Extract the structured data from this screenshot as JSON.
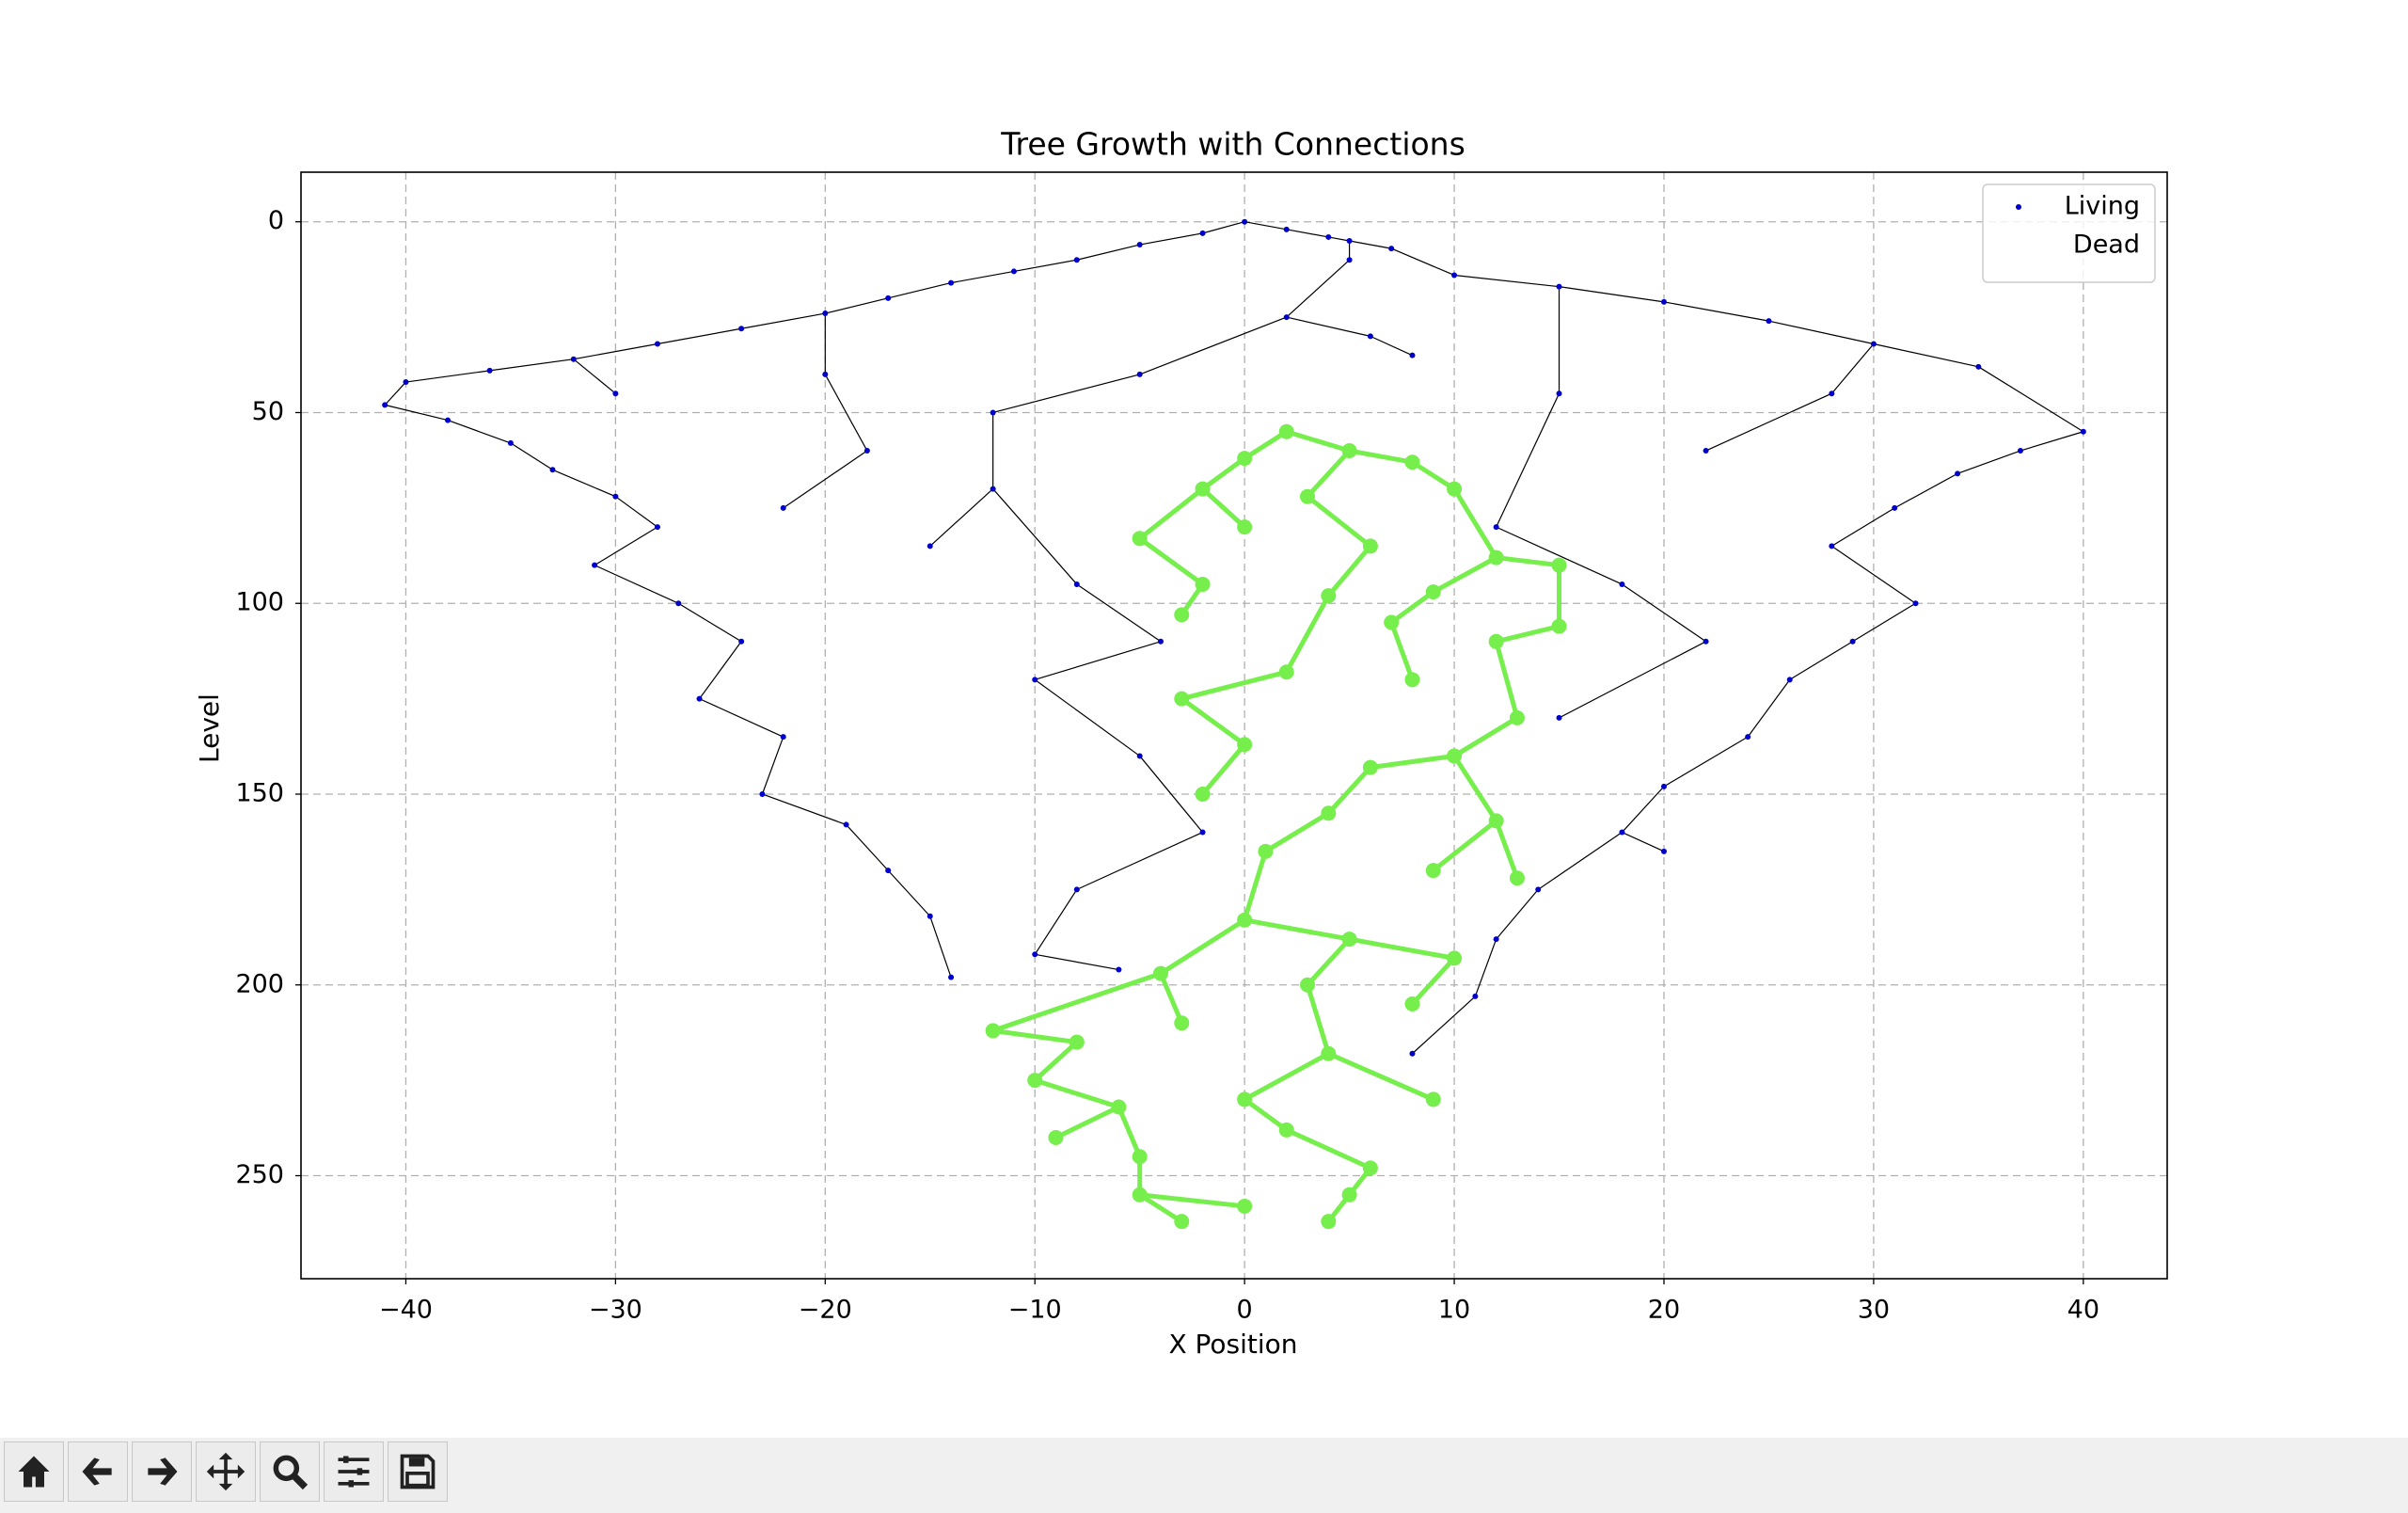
{
  "chart_data": {
    "type": "scatter",
    "title": "Tree Growth with Connections",
    "xlabel": "X Position",
    "ylabel": "Level",
    "xlim": [
      -45,
      44
    ],
    "ylim": [
      -13,
      277
    ],
    "invert_y": true,
    "grid": true,
    "legend": "upper right",
    "xticks": [
      {
        "value": -40,
        "label": "−40"
      },
      {
        "value": -30,
        "label": "−30"
      },
      {
        "value": -20,
        "label": "−20"
      },
      {
        "value": -10,
        "label": "−10"
      },
      0,
      10,
      20,
      30,
      40
    ],
    "yticks": [
      0,
      50,
      100,
      150,
      200,
      250
    ],
    "series": [
      {
        "name": "Living",
        "color": "#0000cc",
        "x": [
          0,
          2,
          4,
          5,
          7,
          -2,
          -5,
          -8,
          -11,
          -14,
          -17,
          -20,
          -24,
          -28,
          -32,
          -36,
          -40,
          -41,
          -38,
          -35,
          -33,
          -30,
          -28,
          -31,
          -27,
          -24,
          -26,
          -22,
          -23,
          -19,
          -17,
          -15,
          -14,
          -10,
          -6,
          5,
          10,
          15,
          20,
          25,
          30,
          35,
          40,
          37,
          34,
          31,
          28,
          32,
          29,
          26,
          24,
          20,
          18,
          14,
          12,
          11,
          8,
          -5,
          -12,
          -18,
          -22,
          -15,
          -8,
          -10,
          -5,
          -2,
          -8,
          2,
          8,
          15,
          22,
          12,
          18,
          22,
          15,
          20,
          -30,
          -20,
          28,
          -12,
          -4,
          6
        ],
        "y": [
          0,
          2,
          4,
          5,
          7,
          3,
          6,
          10,
          13,
          16,
          20,
          24,
          28,
          32,
          36,
          39,
          42,
          48,
          52,
          58,
          65,
          72,
          80,
          90,
          100,
          110,
          125,
          135,
          150,
          158,
          170,
          182,
          198,
          192,
          196,
          10,
          14,
          17,
          21,
          26,
          32,
          38,
          55,
          60,
          66,
          75,
          85,
          100,
          110,
          120,
          135,
          148,
          160,
          175,
          188,
          203,
          218,
          40,
          50,
          60,
          75,
          85,
          95,
          120,
          140,
          160,
          175,
          25,
          35,
          45,
          60,
          80,
          95,
          110,
          130,
          165,
          45,
          40,
          45,
          70,
          110,
          30
        ]
      },
      {
        "name": "Dead",
        "color": "#ffffff",
        "x": [],
        "y": []
      },
      {
        "color": "#76ee4c",
        "x": [
          2,
          5,
          0,
          8,
          -2,
          3,
          10,
          -5,
          0,
          6,
          12,
          15,
          -2,
          4,
          9,
          -3,
          7,
          12,
          15,
          2,
          -3,
          8,
          13,
          0,
          6,
          10,
          -2,
          4,
          12,
          1,
          9,
          13,
          0,
          5,
          10,
          -4,
          3,
          8,
          -12,
          -8,
          -3,
          4,
          -10,
          -6,
          0,
          9,
          -9,
          -5,
          2,
          6,
          -5,
          0,
          4,
          -3,
          5
        ],
        "y": [
          55,
          60,
          62,
          63,
          70,
          72,
          70,
          83,
          80,
          85,
          88,
          90,
          95,
          98,
          97,
          103,
          105,
          110,
          106,
          118,
          125,
          120,
          130,
          137,
          143,
          140,
          150,
          155,
          157,
          165,
          170,
          172,
          183,
          188,
          193,
          197,
          200,
          205,
          212,
          215,
          210,
          218,
          225,
          232,
          230,
          230,
          240,
          245,
          238,
          248,
          255,
          258,
          262,
          262,
          255
        ]
      }
    ]
  }
}
